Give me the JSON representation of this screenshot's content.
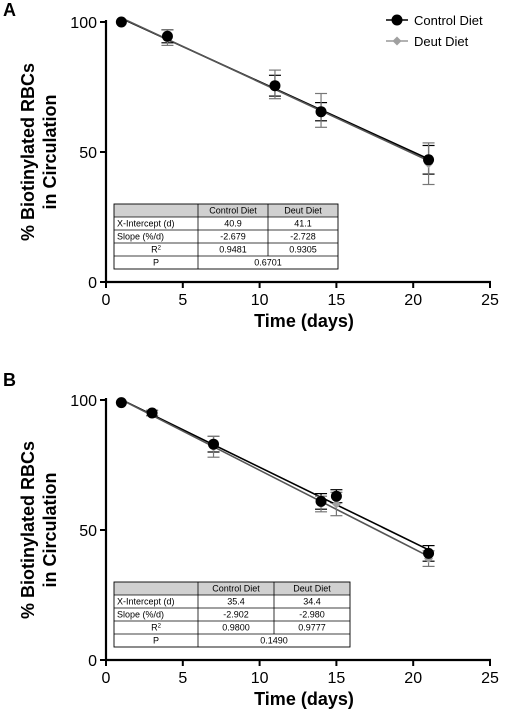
{
  "chart_data": [
    {
      "panel": "A",
      "type": "scatter",
      "xlabel": "Time (days)",
      "ylabel": "% Biotinylated RBCs in Circulation",
      "ylabel_lines": [
        "% Biotinylated RBCs",
        "in  Circulation"
      ],
      "xlim": [
        0,
        25
      ],
      "ylim": [
        0,
        100
      ],
      "xticks": [
        0,
        5,
        10,
        15,
        20,
        25
      ],
      "yticks": [
        0,
        50,
        100
      ],
      "legend": {
        "placement": "top-right",
        "entries": [
          "Control Diet",
          "Deut Diet"
        ]
      },
      "series": [
        {
          "name": "Control Diet",
          "color": "#000000",
          "marker": "circle",
          "x": [
            1,
            4,
            11,
            14,
            21
          ],
          "y": [
            100,
            94.5,
            75.5,
            65.5,
            47
          ],
          "err": [
            0,
            2.5,
            4,
            3.5,
            5.5
          ],
          "fit": {
            "slope": -2.679,
            "x_intercept": 40.9
          }
        },
        {
          "name": "Deut Diet",
          "color": "#a0a0a0",
          "marker": "diamond",
          "x": [
            1,
            4,
            11,
            14,
            21
          ],
          "y": [
            100,
            94,
            76,
            66,
            45.5
          ],
          "err": [
            0,
            3,
            5.5,
            6.5,
            8
          ],
          "fit": {
            "slope": -2.728,
            "x_intercept": 41.1
          }
        }
      ],
      "table": {
        "headers": [
          "",
          "Control Diet",
          "Deut Diet"
        ],
        "rows": [
          {
            "label": "X-Intercept (d)",
            "cells": [
              "40.9",
              "41.1"
            ]
          },
          {
            "label": "Slope (%/d)",
            "cells": [
              "-2.679",
              "-2.728"
            ]
          },
          {
            "label": "R",
            "sup": "2",
            "cells": [
              "0.9481",
              "0.9305"
            ]
          },
          {
            "label": "P",
            "merged": "0.6701"
          }
        ]
      }
    },
    {
      "panel": "B",
      "type": "scatter",
      "xlabel": "Time (days)",
      "ylabel": "% Biotinylated RBCs in Circulation",
      "ylabel_lines": [
        "% Biotinylated RBCs",
        "in  Circulation"
      ],
      "xlim": [
        0,
        25
      ],
      "ylim": [
        0,
        100
      ],
      "xticks": [
        0,
        5,
        10,
        15,
        20,
        25
      ],
      "yticks": [
        0,
        50,
        100
      ],
      "series": [
        {
          "name": "Control Diet",
          "color": "#000000",
          "marker": "circle",
          "x": [
            1,
            3,
            7,
            14,
            15,
            21
          ],
          "y": [
            99,
            95,
            83,
            61,
            63,
            41
          ],
          "err": [
            0,
            1,
            3,
            3,
            2.5,
            3
          ],
          "fit": {
            "slope": -2.902,
            "x_intercept": 35.4
          }
        },
        {
          "name": "Deut Diet",
          "color": "#a0a0a0",
          "marker": "diamond",
          "x": [
            1,
            3,
            7,
            14,
            15,
            21
          ],
          "y": [
            99,
            95,
            82,
            60,
            60,
            39
          ],
          "err": [
            0,
            1,
            4,
            3,
            4.5,
            3
          ],
          "fit": {
            "slope": -2.98,
            "x_intercept": 34.4
          }
        }
      ],
      "table": {
        "headers": [
          "",
          "Control Diet",
          "Deut Diet"
        ],
        "rows": [
          {
            "label": "X-Intercept (d)",
            "cells": [
              "35.4",
              "34.4"
            ]
          },
          {
            "label": "Slope (%/d)",
            "cells": [
              "-2.902",
              "-2.980"
            ]
          },
          {
            "label": "R",
            "sup": "2",
            "cells": [
              "0.9800",
              "0.9777"
            ]
          },
          {
            "label": "P",
            "merged": "0.1490"
          }
        ]
      }
    }
  ]
}
